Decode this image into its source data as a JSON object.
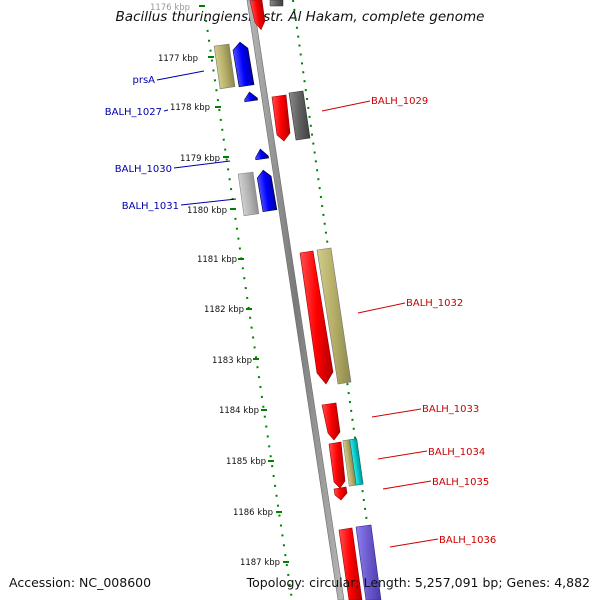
{
  "header": {
    "title": "Bacillus thuringiensis str. Al Hakam, complete genome"
  },
  "footer": {
    "accession": "Accession: NC_008600",
    "summary": "Topology: circular; Length: 5,257,091 bp; Genes: 4,882"
  },
  "colors": {
    "gene_red": "#ff0000",
    "gene_blue": "#0000ff",
    "gene_gray": "#606060",
    "gene_lightgray": "#b4b4b4",
    "gene_khaki": "#b4ae68",
    "gene_cyan": "#00c8c8",
    "gene_purple": "#6a5acd",
    "backbone": "#888888",
    "ruler": "#008000",
    "label_red": "#cc0000",
    "label_blue": "#0000aa"
  },
  "ruler": {
    "ticks": [
      {
        "label": "1176 kbp"
      },
      {
        "label": "1177 kbp"
      },
      {
        "label": "1178 kbp"
      },
      {
        "label": "1179 kbp"
      },
      {
        "label": "1180 kbp"
      },
      {
        "label": "1181 kbp"
      },
      {
        "label": "1182 kbp"
      },
      {
        "label": "1183 kbp"
      },
      {
        "label": "1184 kbp"
      },
      {
        "label": "1185 kbp"
      },
      {
        "label": "1186 kbp"
      },
      {
        "label": "1187 kbp"
      }
    ]
  },
  "labels": {
    "prsA": "prsA",
    "balh_1027": "BALH_1027",
    "balh_1029": "BALH_1029",
    "balh_1030": "BALH_1030",
    "balh_1031": "BALH_1031",
    "balh_1032": "BALH_1032",
    "balh_1033": "BALH_1033",
    "balh_1034": "BALH_1034",
    "balh_1035": "BALH_1035",
    "balh_1036": "BALH_1036"
  }
}
